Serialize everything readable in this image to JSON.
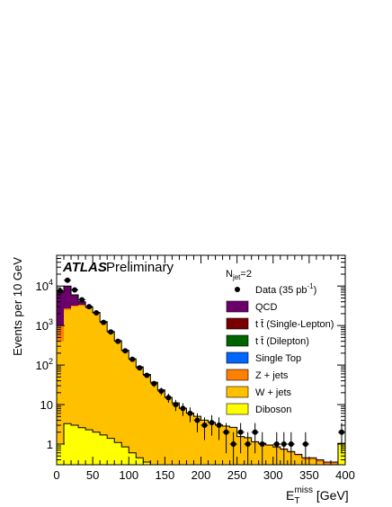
{
  "chart_data": {
    "type": "area",
    "stacked": true,
    "log_y": true,
    "x_bin_width": 10,
    "xlim": [
      0,
      400
    ],
    "ylim": [
      0.3,
      60000
    ],
    "xticks": [
      0,
      50,
      100,
      150,
      200,
      250,
      300,
      350,
      400
    ],
    "yticks": [
      1,
      10,
      100,
      1000,
      10000
    ],
    "ytick_labels": [
      "1",
      "10",
      "10^2",
      "10^3",
      "10^4"
    ],
    "ylabel": "Events per 10 GeV",
    "xlabel_main": "E",
    "xlabel_sub": "T",
    "xlabel_sup": "miss",
    "xlabel_unit": " [GeV]",
    "atlas_label": "ATLAS",
    "preliminary_label": "Preliminary",
    "njet_label_main": "N",
    "njet_label_sub": "jet",
    "njet_label_val": "=2",
    "legend_position": "top-right",
    "legend": [
      {
        "name": "Data (35 pb",
        "sup": "-1",
        "suffix": ")",
        "marker": "point"
      },
      {
        "name": "QCD",
        "color": "#6b006b"
      },
      {
        "name": "t t̄ (Single-Lepton)",
        "color": "#7a0000"
      },
      {
        "name": "t t̄ (Dilepton)",
        "color": "#006400"
      },
      {
        "name": "Single Top",
        "color": "#0066ff"
      },
      {
        "name": "Z + jets",
        "color": "#ff7f00"
      },
      {
        "name": "W + jets",
        "color": "#ffc000"
      },
      {
        "name": "Diboson",
        "color": "#ffff00"
      }
    ],
    "colors": {
      "qcd": "#6b006b",
      "zjets": "#ff7f00",
      "wjets": "#ffc000",
      "diboson": "#ffff00"
    },
    "totals": {
      "diboson": [
        1.0,
        3.3,
        3.0,
        2.6,
        2.3,
        2.0,
        1.7,
        1.4,
        1.1,
        0.85,
        0.6,
        0.45,
        0.35,
        0.3,
        0.3,
        0.3,
        0.3,
        0.3,
        0.3,
        0.3,
        0.3,
        0.3,
        0.3,
        0.3,
        0.3,
        0.3,
        0.3,
        0.3,
        0.3,
        0.3,
        0.3,
        0.3,
        0.3,
        0.3,
        0.3,
        0.3,
        0.3,
        0.3,
        0.3,
        1.0
      ],
      "wjets": [
        400,
        2500,
        3000,
        3200,
        2700,
        2000,
        1200,
        680,
        400,
        230,
        140,
        88,
        57,
        36,
        23,
        15,
        11,
        8,
        6,
        5,
        4,
        3.5,
        3,
        2.8,
        2.6,
        1.5,
        1.4,
        1.1,
        1.0,
        0.9,
        0.8,
        0.7,
        0.6,
        0.5,
        0.4,
        0.4,
        0.35,
        0.3,
        0.3,
        1.0
      ],
      "zjets": [
        1000,
        2700,
        3200,
        3350,
        2800,
        2050,
        1230,
        700,
        410,
        235,
        143,
        90,
        58,
        37,
        23.5,
        15.2,
        11.1,
        8.1,
        6.1,
        5.05,
        4.05,
        3.55,
        3.05,
        2.85,
        2.65,
        1.55,
        1.45,
        1.15,
        1.05,
        0.95,
        0.85,
        0.75,
        0.65,
        0.55,
        0.45,
        0.45,
        0.4,
        0.35,
        0.35,
        1.05
      ],
      "qcd": [
        7000,
        10000,
        6000,
        4000,
        3000,
        2150,
        1260,
        710,
        415,
        237,
        144,
        90,
        58,
        37,
        23.5,
        15.2,
        11.1,
        8.1,
        6.1,
        5.05,
        4.05,
        3.55,
        3.05,
        2.85,
        2.65,
        1.55,
        1.45,
        1.15,
        1.05,
        0.95,
        0.85,
        0.75,
        0.65,
        0.55,
        0.45,
        0.45,
        0.4,
        0.35,
        0.35,
        1.05
      ]
    },
    "data_points": [
      {
        "x": 5,
        "y": 7500
      },
      {
        "x": 15,
        "y": 14000
      },
      {
        "x": 25,
        "y": 8000
      },
      {
        "x": 35,
        "y": 4500
      },
      {
        "x": 45,
        "y": 3000
      },
      {
        "x": 55,
        "y": 2100
      },
      {
        "x": 65,
        "y": 1200
      },
      {
        "x": 75,
        "y": 690
      },
      {
        "x": 85,
        "y": 400
      },
      {
        "x": 95,
        "y": 230
      },
      {
        "x": 105,
        "y": 140
      },
      {
        "x": 115,
        "y": 85
      },
      {
        "x": 125,
        "y": 55
      },
      {
        "x": 135,
        "y": 34
      },
      {
        "x": 145,
        "y": 22
      },
      {
        "x": 155,
        "y": 15
      },
      {
        "x": 165,
        "y": 10
      },
      {
        "x": 175,
        "y": 8
      },
      {
        "x": 185,
        "y": 6
      },
      {
        "x": 195,
        "y": 4
      },
      {
        "x": 205,
        "y": 3
      },
      {
        "x": 215,
        "y": 3.5
      },
      {
        "x": 225,
        "y": 3
      },
      {
        "x": 235,
        "y": 2
      },
      {
        "x": 245,
        "y": 1
      },
      {
        "x": 255,
        "y": 2
      },
      {
        "x": 265,
        "y": 1
      },
      {
        "x": 275,
        "y": 2
      },
      {
        "x": 285,
        "y": 1
      },
      {
        "x": 305,
        "y": 1
      },
      {
        "x": 315,
        "y": 1
      },
      {
        "x": 325,
        "y": 1
      },
      {
        "x": 345,
        "y": 1
      },
      {
        "x": 395,
        "y": 2
      }
    ]
  }
}
